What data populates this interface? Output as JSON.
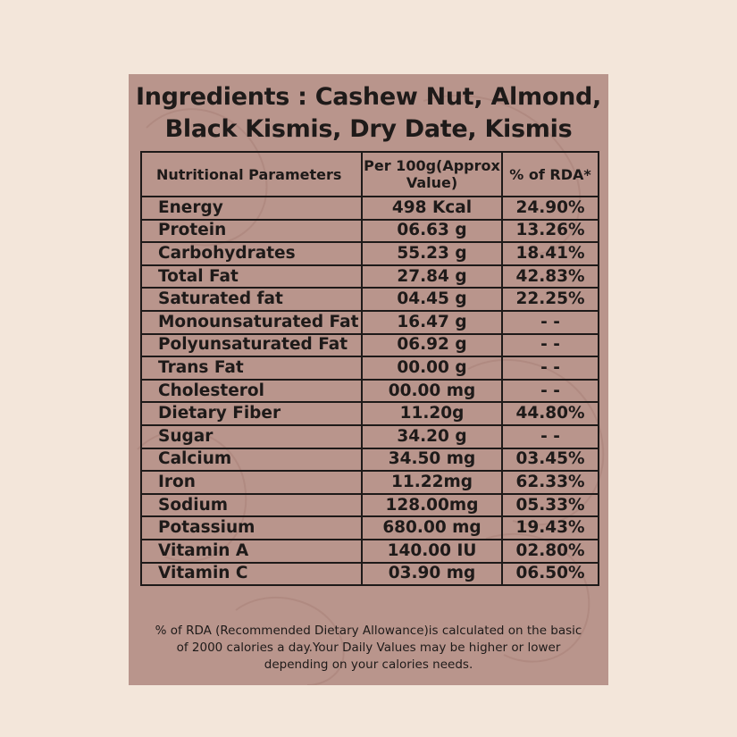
{
  "title": {
    "line1": "Ingredients : Cashew Nut, Almond,",
    "line2": "Black Kismis, Dry Date, Kismis"
  },
  "table": {
    "headers": {
      "parameter": "Nutritional Parameters",
      "per100g": "Per 100g(Approx Value)",
      "rda": "% of RDA*"
    },
    "rows": [
      {
        "param": "Energy",
        "value": "498 Kcal",
        "rda": "24.90%"
      },
      {
        "param": "Protein",
        "value": "06.63 g",
        "rda": "13.26%"
      },
      {
        "param": "Carbohydrates",
        "value": "55.23 g",
        "rda": "18.41%"
      },
      {
        "param": "Total Fat",
        "value": "27.84 g",
        "rda": "42.83%"
      },
      {
        "param": "Saturated fat",
        "value": "04.45 g",
        "rda": "22.25%"
      },
      {
        "param": "Monounsaturated Fat",
        "value": "16.47 g",
        "rda": "- -"
      },
      {
        "param": "Polyunsaturated Fat",
        "value": "06.92 g",
        "rda": "- -"
      },
      {
        "param": "Trans Fat",
        "value": "00.00 g",
        "rda": "- -"
      },
      {
        "param": "Cholesterol",
        "value": "00.00 mg",
        "rda": "- -"
      },
      {
        "param": "Dietary Fiber",
        "value": "11.20g",
        "rda": "44.80%"
      },
      {
        "param": "Sugar",
        "value": "34.20 g",
        "rda": "- -"
      },
      {
        "param": "Calcium",
        "value": "34.50 mg",
        "rda": "03.45%"
      },
      {
        "param": "Iron",
        "value": "11.22mg",
        "rda": "62.33%"
      },
      {
        "param": "Sodium",
        "value": "128.00mg",
        "rda": "05.33%"
      },
      {
        "param": "Potassium",
        "value": "680.00 mg",
        "rda": "19.43%"
      },
      {
        "param": "Vitamin A",
        "value": "140.00 IU",
        "rda": "02.80%"
      },
      {
        "param": "Vitamin C",
        "value": "03.90 mg",
        "rda": "06.50%"
      }
    ]
  },
  "footnote": {
    "line1": "% of RDA (Recommended Dietary Allowance)is calculated on the basic",
    "line2": "of 2000 calories a day.Your Daily Values may be higher or lower",
    "line3": "depending on your calories needs."
  },
  "colors": {
    "page_background": "#f3e6da",
    "panel_background": "#b9958c",
    "text": "#1e1a19"
  }
}
